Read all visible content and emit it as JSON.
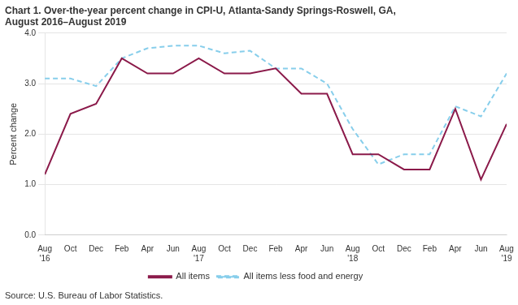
{
  "chart_data": {
    "type": "line",
    "title": "Chart 1. Over-the-year percent change in CPI-U, Atlanta-Sandy Springs-Roswell, GA,\nAugust 2016–August 2019",
    "y_label": "Percent change",
    "source": "Source: U.S. Bureau of Labor Statistics.",
    "categories": [
      "Aug\n'16",
      "Oct",
      "Dec",
      "Feb",
      "Apr",
      "Jun",
      "Aug\n'17",
      "Oct",
      "Dec",
      "Feb",
      "Apr",
      "Jun",
      "Aug\n'18",
      "Oct",
      "Dec",
      "Feb",
      "Apr",
      "Jun",
      "Aug\n'19"
    ],
    "series": [
      {
        "name": "All items",
        "color": "#8B1A4A",
        "line_style": "solid",
        "values": [
          1.2,
          2.4,
          2.6,
          3.5,
          3.2,
          3.2,
          3.5,
          3.2,
          3.2,
          3.3,
          2.8,
          2.8,
          1.6,
          1.6,
          1.3,
          1.3,
          2.5,
          1.1,
          2.2
        ]
      },
      {
        "name": "All items less food and energy",
        "color": "#87CEEB",
        "line_style": "dashed",
        "values": [
          3.1,
          3.1,
          2.95,
          3.5,
          3.7,
          3.75,
          3.75,
          3.6,
          3.65,
          3.3,
          3.3,
          3.0,
          2.1,
          1.4,
          1.6,
          1.6,
          2.55,
          2.35,
          3.2
        ]
      }
    ],
    "ylim": [
      0,
      4
    ],
    "yticks": [
      {
        "value": 0,
        "label": "0.0"
      },
      {
        "value": 1,
        "label": "1.0"
      },
      {
        "value": 2,
        "label": "2.0"
      },
      {
        "value": 3,
        "label": "3.0"
      },
      {
        "value": 4,
        "label": "4.0"
      }
    ],
    "grid": true,
    "legend": "bottom"
  }
}
